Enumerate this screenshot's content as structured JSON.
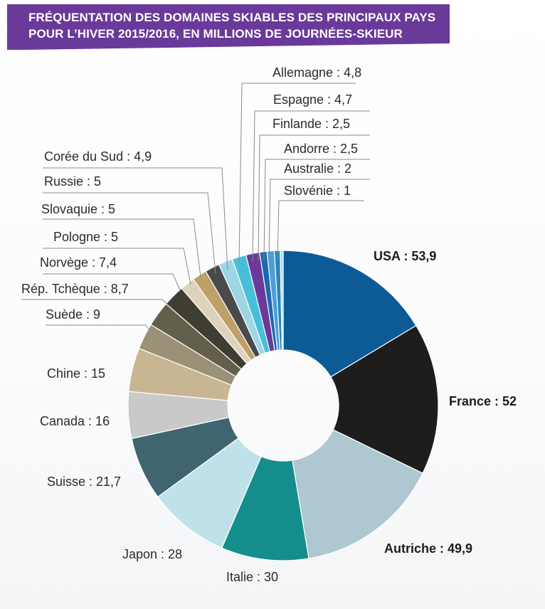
{
  "title": {
    "line1": "FRÉQUENTATION DES DOMAINES SKIABLES DES PRINCIPAUX PAYS",
    "line2": "POUR L’HIVER 2015/2016, EN MILLIONS DE JOURNÉES-SKIEUR"
  },
  "colors": {
    "title_band": "#6a3a9a"
  },
  "chart_data": {
    "type": "pie",
    "donut": true,
    "title": "FRÉQUENTATION DES DOMAINES SKIABLES DES PRINCIPAUX PAYS POUR L’HIVER 2015/2016, EN MILLIONS DE JOURNÉES-SKIEUR",
    "slices": [
      {
        "label": "USA",
        "value": 53.9,
        "text": "USA : 53,9",
        "color": "#0d5b96",
        "bold": true
      },
      {
        "label": "France",
        "value": 52,
        "text": "France : 52",
        "color": "#1d1d1d",
        "bold": true
      },
      {
        "label": "Autriche",
        "value": 49.9,
        "text": "Autriche : 49,9",
        "color": "#aec7d0",
        "bold": true
      },
      {
        "label": "Italie",
        "value": 30,
        "text": "Italie : 30",
        "color": "#138e8c",
        "bold": false
      },
      {
        "label": "Japon",
        "value": 28,
        "text": "Japon : 28",
        "color": "#bfe1ea",
        "bold": false
      },
      {
        "label": "Suisse",
        "value": 21.7,
        "text": "Suisse : 21,7",
        "color": "#3f6571",
        "bold": false
      },
      {
        "label": "Canada",
        "value": 16,
        "text": "Canada : 16",
        "color": "#c9c9c9",
        "bold": false
      },
      {
        "label": "Chine",
        "value": 15,
        "text": "Chine : 15",
        "color": "#c8b592",
        "bold": false
      },
      {
        "label": "Suède",
        "value": 9,
        "text": "Suède : 9",
        "color": "#9a9176",
        "bold": false
      },
      {
        "label": "Rép. Tchèque",
        "value": 8.7,
        "text": "Rép. Tchèque : 8,7",
        "color": "#625f4a",
        "bold": false
      },
      {
        "label": "Norvège",
        "value": 7.4,
        "text": "Norvège : 7,4",
        "color": "#3e3e32",
        "bold": false
      },
      {
        "label": "Pologne",
        "value": 5,
        "text": "Pologne : 5",
        "color": "#ddd2bb",
        "bold": false
      },
      {
        "label": "Slovaquie",
        "value": 5,
        "text": "Slovaquie : 5",
        "color": "#bfa068",
        "bold": false
      },
      {
        "label": "Russie",
        "value": 5,
        "text": "Russie : 5",
        "color": "#4a4a4a",
        "bold": false
      },
      {
        "label": "Corée du Sud",
        "value": 4.9,
        "text": "Corée du Sud : 4,9",
        "color": "#9fd6e6",
        "bold": false
      },
      {
        "label": "Allemagne",
        "value": 4.8,
        "text": "Allemagne : 4,8",
        "color": "#47bfda",
        "bold": false
      },
      {
        "label": "Espagne",
        "value": 4.7,
        "text": "Espagne : 4,7",
        "color": "#6a3a9a",
        "bold": false
      },
      {
        "label": "Finlande",
        "value": 2.5,
        "text": "Finlande : 2,5",
        "color": "#1b69b0",
        "bold": false
      },
      {
        "label": "Andorre",
        "value": 2.5,
        "text": "Andorre : 2,5",
        "color": "#4d9ed4",
        "bold": false
      },
      {
        "label": "Australie",
        "value": 2,
        "text": "Australie : 2",
        "color": "#2a86b8",
        "bold": false
      },
      {
        "label": "Slovénie",
        "value": 1,
        "text": "Slovénie : 1",
        "color": "#a6dfe8",
        "bold": false
      }
    ]
  }
}
